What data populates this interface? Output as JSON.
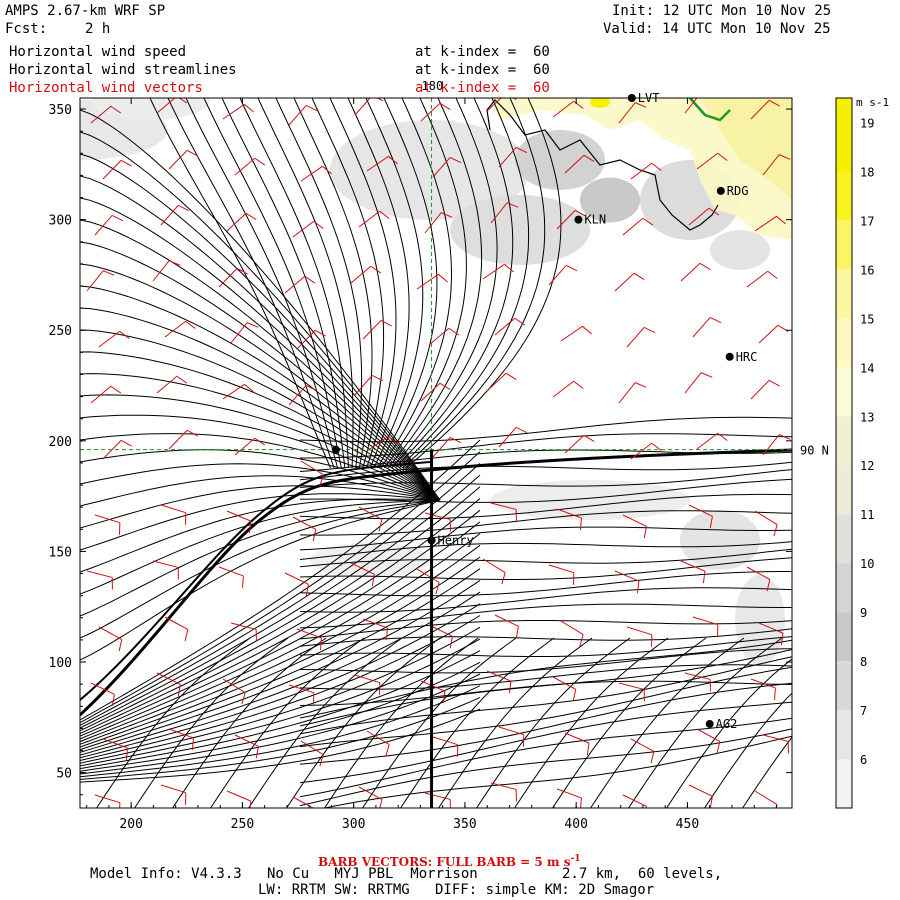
{
  "header": {
    "title": "AMPS 2.67-km WRF SP",
    "fcst_label": "Fcst:",
    "fcst_value": "2 h",
    "init": "Init: 12 UTC Mon 10 Nov 25",
    "valid": "Valid: 14 UTC Mon 10 Nov 25",
    "fields": [
      {
        "label": "Horizontal wind speed",
        "level": "at k-index =  60"
      },
      {
        "label": "Horizontal wind streamlines",
        "level": "at k-index =  60"
      },
      {
        "label": "Horizontal wind vectors",
        "level": "at k-index =  60"
      }
    ]
  },
  "colors": {
    "vectors": "#d01010",
    "streamlines": "#000000",
    "grid": "#2a8a2a",
    "coast_green": "#1a9a1a",
    "terrain": "#f5f0b8"
  },
  "chart_data": {
    "type": "heatmap",
    "x_ticks": [
      200,
      250,
      300,
      350,
      400,
      450
    ],
    "y_ticks": [
      50,
      100,
      150,
      200,
      250,
      300,
      350
    ],
    "xlim": [
      177,
      497
    ],
    "ylim": [
      34,
      355
    ],
    "colorbar": {
      "unit": "m s-1",
      "levels": [
        19,
        18,
        17,
        16,
        15,
        14,
        13,
        12,
        11,
        10,
        9,
        8,
        7,
        6
      ],
      "colors": [
        "#f6f000",
        "#f8f220",
        "#f9f565",
        "#fbf8a0",
        "#fcfac0",
        "#fdfcd8",
        "#f0f0d0",
        "#ececd8",
        "#e0e0dc",
        "#d4d4d4",
        "#c8c8c8",
        "#d8d8d8",
        "#e6e6e6",
        "#f2f2f2"
      ]
    },
    "meridian_label": "180",
    "parallel_label": "90 N",
    "grid_cross": {
      "x": 335,
      "y": 196
    },
    "cross_section_line": {
      "x": 335,
      "y_from": 34,
      "y_to": 196
    },
    "stations": [
      {
        "name": "LVT",
        "x": 425,
        "y": 355
      },
      {
        "name": "RDG",
        "x": 465,
        "y": 313
      },
      {
        "name": "KLN",
        "x": 401,
        "y": 300
      },
      {
        "name": "HRC",
        "x": 469,
        "y": 238
      },
      {
        "name": "Henry",
        "x": 335,
        "y": 155
      },
      {
        "name": "",
        "x": 292,
        "y": 196
      },
      {
        "name": "AG2",
        "x": 460,
        "y": 72
      }
    ]
  },
  "footer": {
    "barb_note": "BARB VECTORS: FULL BARB = 5 m s",
    "barb_sup": "-1",
    "model_info": "Model Info: V4.3.3   No Cu   MYJ PBL  Morrison          2.7 km,  60 levels,",
    "physics": "LW: RRTM SW: RRTMG   DIFF: simple KM: 2D Smagor"
  }
}
